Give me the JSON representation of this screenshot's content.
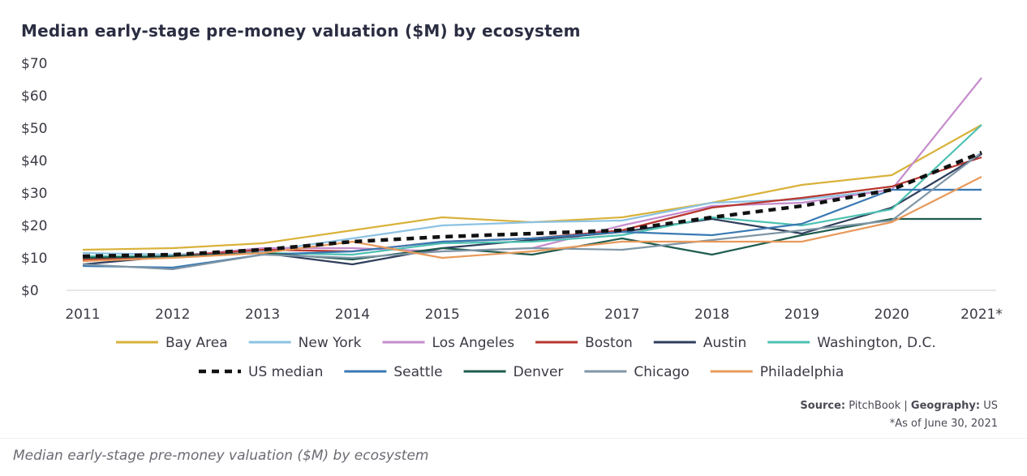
{
  "chart_data": {
    "type": "line",
    "title": "Median early-stage pre-money valuation ($M) by ecosystem",
    "categories": [
      "2011",
      "2012",
      "2013",
      "2014",
      "2015",
      "2016",
      "2017",
      "2018",
      "2019",
      "2020",
      "2021*"
    ],
    "y_ticks": [
      "$0",
      "$10",
      "$20",
      "$30",
      "$40",
      "$50",
      "$60",
      "$70"
    ],
    "ylim": [
      0,
      70
    ],
    "grid": false,
    "legend_placement": "bottom",
    "series": [
      {
        "name": "Bay Area",
        "color": "#d9b23a",
        "dash": false,
        "values": [
          12.5,
          13,
          14.5,
          18.5,
          22.5,
          21,
          22.5,
          27,
          32.5,
          35.5,
          51
        ]
      },
      {
        "name": "New York",
        "color": "#8cc2e3",
        "dash": false,
        "values": [
          11.5,
          11,
          12,
          16,
          20,
          21,
          21.5,
          27,
          28,
          31,
          31
        ]
      },
      {
        "name": "Los Angeles",
        "color": "#c58ccc",
        "dash": false,
        "values": [
          10,
          10.5,
          13,
          13,
          12,
          13,
          20,
          26,
          27,
          31,
          65.5
        ]
      },
      {
        "name": "Boston",
        "color": "#b8362f",
        "dash": false,
        "values": [
          9.5,
          10.5,
          12.5,
          12,
          15,
          16,
          18.5,
          25.5,
          28.5,
          32,
          41
        ]
      },
      {
        "name": "Austin",
        "color": "#2f3e5c",
        "dash": false,
        "values": [
          8,
          10.5,
          11.5,
          8,
          13,
          15.5,
          18,
          22,
          17.5,
          25.5,
          42
        ]
      },
      {
        "name": "Washington, D.C.",
        "color": "#4ec1b2",
        "dash": false,
        "values": [
          10.5,
          10.5,
          11.5,
          11,
          14.5,
          15,
          17,
          22.5,
          20,
          25,
          51
        ]
      },
      {
        "name": "US median",
        "color": "#111111",
        "dash": true,
        "values": [
          10.5,
          11,
          12.5,
          15,
          16.5,
          17.5,
          18.5,
          22.5,
          26,
          31,
          42.5
        ]
      },
      {
        "name": "Seattle",
        "color": "#3a79b3",
        "dash": false,
        "values": [
          7.5,
          7,
          11,
          12,
          15,
          16,
          18,
          17,
          20.5,
          31,
          31
        ]
      },
      {
        "name": "Denver",
        "color": "#1f5c4e",
        "dash": false,
        "values": [
          10,
          10.5,
          11.5,
          9.5,
          13,
          11,
          16,
          11,
          17,
          22,
          22
        ]
      },
      {
        "name": "Chicago",
        "color": "#7f96a6",
        "dash": false,
        "values": [
          8,
          6.5,
          11,
          10,
          12,
          13,
          12.5,
          15.5,
          18.5,
          21.5,
          42.5
        ]
      },
      {
        "name": "Philadelphia",
        "color": "#e89a5b",
        "dash": false,
        "values": [
          9,
          10,
          11.5,
          15,
          10,
          12,
          15,
          15,
          15,
          21,
          35
        ]
      }
    ]
  },
  "source": {
    "source_label": "Source:",
    "source_value": "PitchBook",
    "separator": " | ",
    "geo_label": "Geography:",
    "geo_value": "US",
    "note": "*As of June 30, 2021"
  },
  "caption": "Median early-stage pre-money valuation ($M) by ecosystem"
}
